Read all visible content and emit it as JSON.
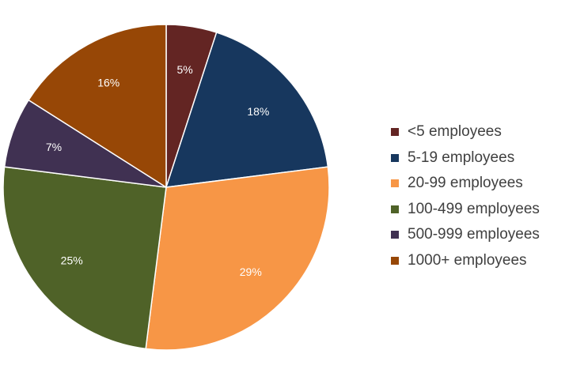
{
  "chart_data": {
    "type": "pie",
    "title": "",
    "start_angle_deg": 0,
    "direction": "clockwise",
    "legend_position": "right",
    "slices": [
      {
        "label": "<5 employees",
        "value": 5,
        "display": "5%",
        "color": "#632523"
      },
      {
        "label": "5-19 employees",
        "value": 18,
        "display": "18%",
        "color": "#17375E"
      },
      {
        "label": "20-99 employees",
        "value": 29,
        "display": "29%",
        "color": "#F79646"
      },
      {
        "label": "100-499 employees",
        "value": 25,
        "display": "25%",
        "color": "#4F6228"
      },
      {
        "label": "500-999 employees",
        "value": 7,
        "display": "7%",
        "color": "#403152"
      },
      {
        "label": "1000+ employees",
        "value": 16,
        "display": "16%",
        "color": "#974706"
      }
    ]
  }
}
